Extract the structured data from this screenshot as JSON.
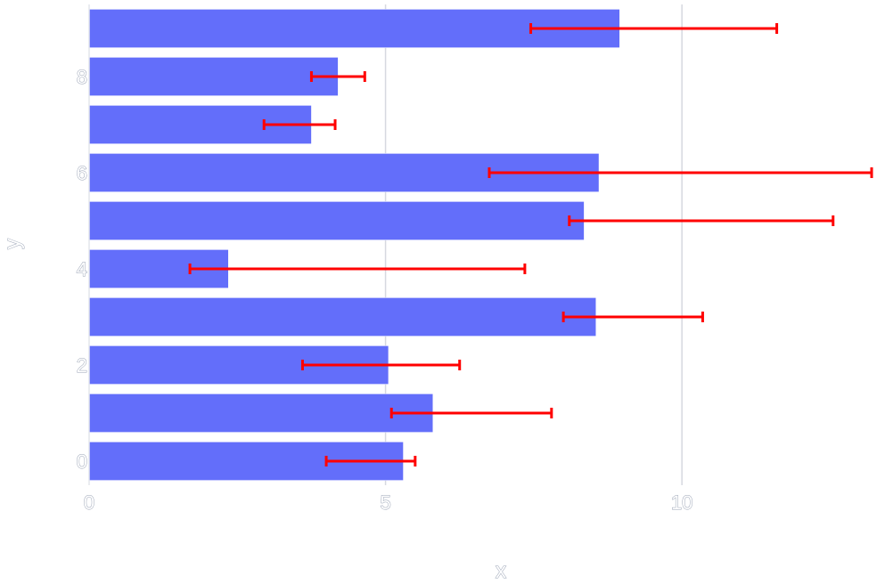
{
  "chart_data": {
    "type": "bar",
    "orientation": "horizontal",
    "xlabel": "x",
    "ylabel": "y",
    "xlim": [
      0,
      13.2
    ],
    "ylim": [
      -0.5,
      9.5
    ],
    "x_ticks": [
      {
        "value": 0,
        "label": "0"
      },
      {
        "value": 5,
        "label": "5"
      },
      {
        "value": 10,
        "label": "10"
      }
    ],
    "y_ticks": [
      {
        "value": 0,
        "label": "0"
      },
      {
        "value": 2,
        "label": "2"
      },
      {
        "value": 4,
        "label": "4"
      },
      {
        "value": 6,
        "label": "6"
      },
      {
        "value": 8,
        "label": "8"
      }
    ],
    "grid": "vertical",
    "bar_color": "#636efa",
    "error_color": "#ff0000",
    "series": [
      {
        "y": [
          0,
          1,
          2,
          3,
          4,
          5,
          6,
          7,
          8,
          9
        ],
        "values": [
          5.3,
          5.8,
          5.05,
          8.55,
          2.35,
          8.35,
          8.6,
          3.75,
          4.2,
          8.95
        ],
        "error_low": [
          4.0,
          5.1,
          3.6,
          8.0,
          1.7,
          8.1,
          6.75,
          2.95,
          3.75,
          7.45
        ],
        "error_high": [
          5.5,
          7.8,
          6.25,
          10.35,
          7.35,
          12.55,
          13.2,
          4.15,
          4.65,
          11.6
        ]
      }
    ]
  }
}
